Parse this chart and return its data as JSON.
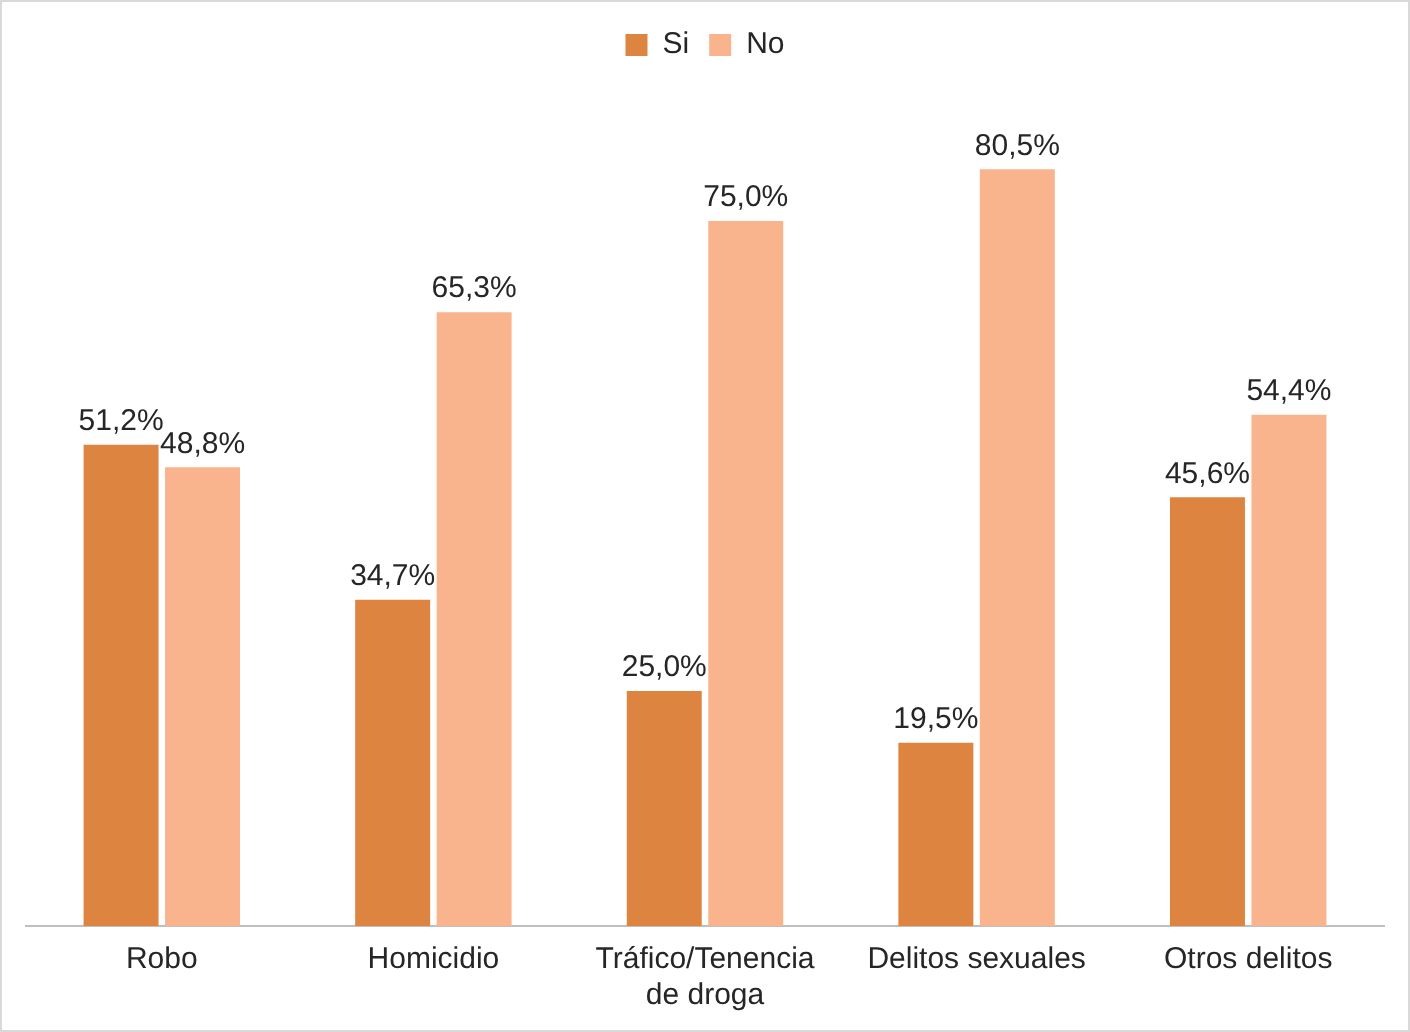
{
  "chart_data": {
    "type": "bar",
    "categories": [
      "Robo",
      "Homicidio",
      "Tráfico/Tenencia de droga",
      "Delitos sexuales",
      "Otros delitos"
    ],
    "series": [
      {
        "name": "Si",
        "color": "#dd8441",
        "values": [
          51.2,
          34.7,
          25.0,
          19.5,
          45.6
        ],
        "value_labels": [
          "51,2%",
          "34,7%",
          "25,0%",
          "19,5%",
          "45,6%"
        ]
      },
      {
        "name": "No",
        "color": "#f9b48e",
        "values": [
          48.8,
          65.3,
          75.0,
          80.5,
          54.4
        ],
        "value_labels": [
          "48,8%",
          "65,3%",
          "75,0%",
          "80,5%",
          "54,4%"
        ]
      }
    ],
    "grid": false,
    "legend": "top"
  }
}
